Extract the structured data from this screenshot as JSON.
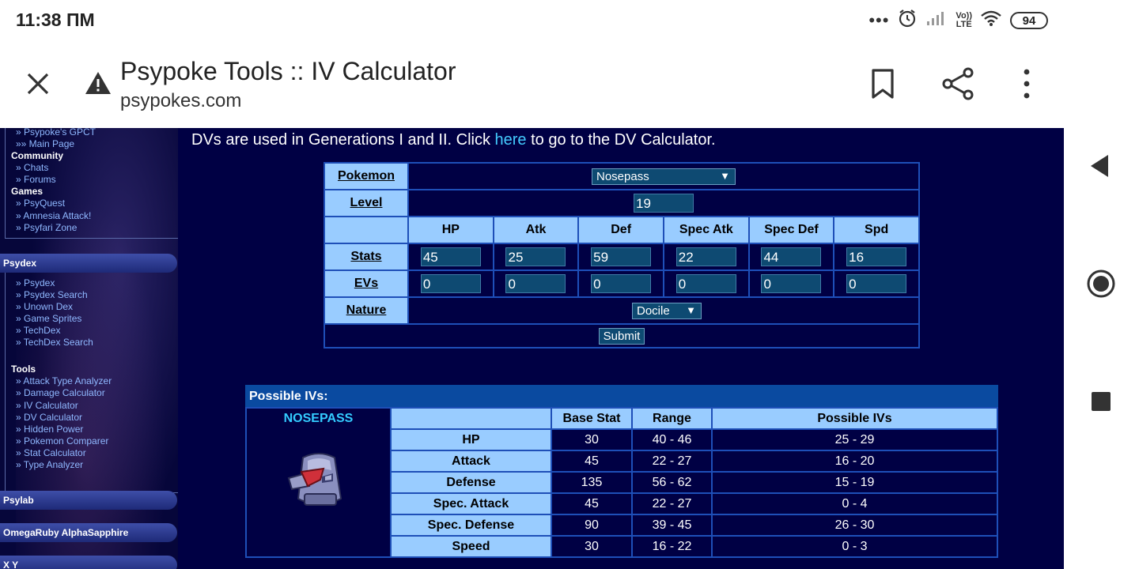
{
  "status": {
    "time": "11:38 ПМ",
    "dots": "•••",
    "net_top": "Vo))",
    "net_bottom": "LTE",
    "battery": "94"
  },
  "browser": {
    "title": "Psypoke Tools :: IV Calculator",
    "url": "psypokes.com",
    "icons": [
      "close-icon",
      "warning-icon",
      "bookmark-icon",
      "share-icon",
      "more-icon"
    ]
  },
  "sidebar": {
    "links_top": [
      "» Psypoke's GPCT",
      "»» Main Page"
    ],
    "community": {
      "label": "Community",
      "links": [
        "» Chats",
        "» Forums"
      ]
    },
    "games": {
      "label": "Games",
      "links": [
        "» PsyQuest",
        "» Amnesia Attack!",
        "» Psyfari Zone"
      ]
    },
    "psydex": {
      "header": "Psydex",
      "links": [
        "» Psydex",
        "» Psydex Search",
        "» Unown Dex",
        "» Game Sprites",
        "» TechDex",
        "» TechDex Search"
      ]
    },
    "tools": {
      "label": "Tools",
      "links": [
        "» Attack Type Analyzer",
        "» Damage Calculator",
        "» IV Calculator",
        "» DV Calculator",
        "» Hidden Power",
        "» Pokemon Comparer",
        "» Stat Calculator",
        "» Type Analyzer"
      ]
    },
    "headers_bottom": [
      "Psylab",
      "OmegaRuby AlphaSapphire",
      "X Y"
    ]
  },
  "intro": {
    "before": "DVs are used in Generations I and II. Click ",
    "link": "here",
    "after": " to go to the DV Calculator."
  },
  "form": {
    "pokemon_label": "Pokemon",
    "pokemon_value": "Nosepass",
    "level_label": "Level",
    "level_value": "19",
    "stat_headers": [
      "HP",
      "Atk",
      "Def",
      "Spec Atk",
      "Spec Def",
      "Spd"
    ],
    "stats_label": "Stats",
    "stats": [
      "45",
      "25",
      "59",
      "22",
      "44",
      "16"
    ],
    "evs_label": "EVs",
    "evs": [
      "0",
      "0",
      "0",
      "0",
      "0",
      "0"
    ],
    "nature_label": "Nature",
    "nature_value": "Docile",
    "submit_label": "Submit"
  },
  "results": {
    "title": "Possible IVs:",
    "pokemon_name": "NOSEPASS",
    "headers": [
      "Base Stat",
      "Range",
      "Possible IVs"
    ],
    "rows": [
      {
        "stat": "HP",
        "base": "30",
        "range": "40 - 46",
        "ivs": "25 - 29"
      },
      {
        "stat": "Attack",
        "base": "45",
        "range": "22 - 27",
        "ivs": "16 - 20"
      },
      {
        "stat": "Defense",
        "base": "135",
        "range": "56 - 62",
        "ivs": "15 - 19"
      },
      {
        "stat": "Spec. Attack",
        "base": "45",
        "range": "22 - 27",
        "ivs": "0 - 4"
      },
      {
        "stat": "Spec. Defense",
        "base": "90",
        "range": "39 - 45",
        "ivs": "26 - 30"
      },
      {
        "stat": "Speed",
        "base": "30",
        "range": "16 - 22",
        "ivs": "0 - 3"
      }
    ]
  }
}
